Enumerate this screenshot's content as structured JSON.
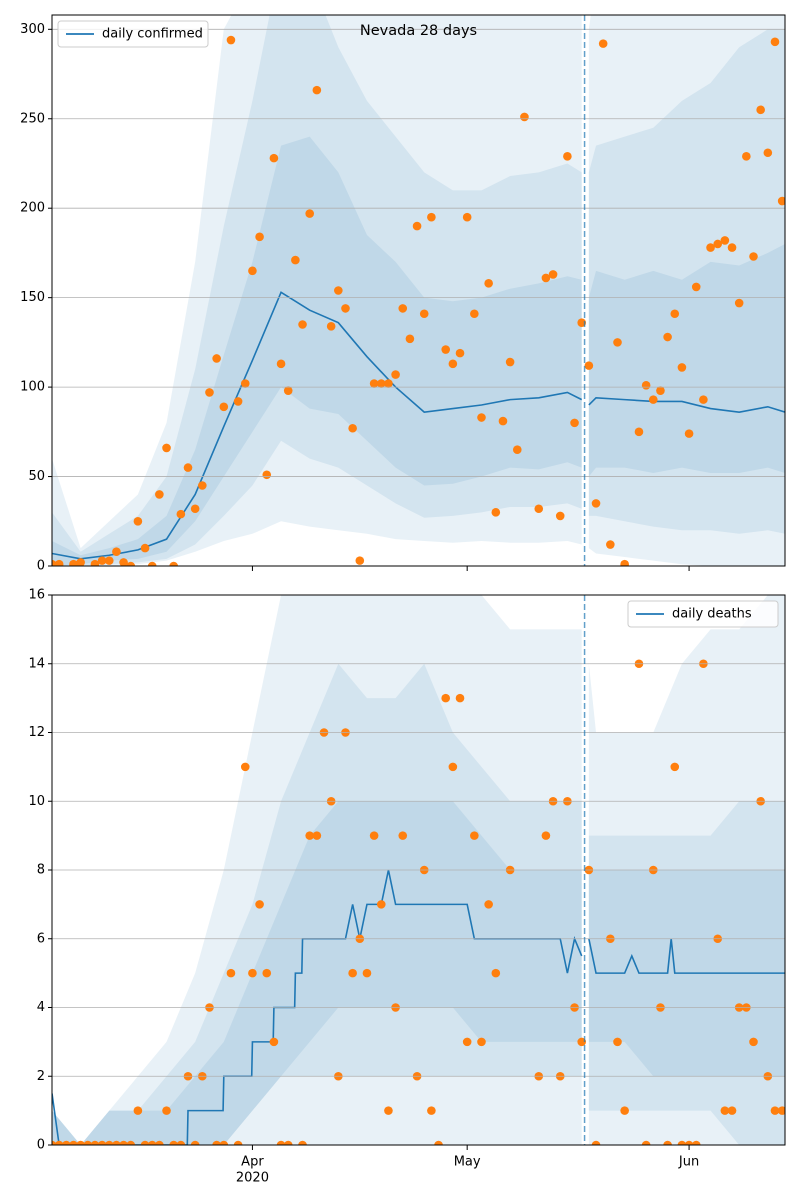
{
  "chart_data": [
    {
      "type": "line",
      "title": "Nevada 28 days",
      "xlim": [
        0,
        102.4
      ],
      "xticks": [
        28,
        58,
        89
      ],
      "ylim": [
        0,
        308
      ],
      "yticks": [
        0,
        50,
        100,
        150,
        200,
        250,
        300
      ],
      "grid": true,
      "legend": "upper left",
      "vline": 74.4,
      "x": [
        0,
        4,
        8,
        12,
        16,
        20,
        24,
        28,
        32,
        36,
        40,
        44,
        48,
        52,
        56,
        60,
        64,
        68,
        72,
        74,
        74.5,
        75,
        76,
        80,
        84,
        88,
        92,
        96,
        100,
        102.4
      ],
      "bands": [
        {
          "color": "#1f77b4",
          "lower": [
            0,
            0,
            0,
            1,
            3,
            8,
            14,
            18,
            25,
            22,
            20,
            18,
            15,
            14,
            13,
            14,
            13,
            13,
            14,
            12,
            null,
            10,
            7,
            5,
            3,
            1,
            0,
            0,
            0,
            0
          ],
          "upper": [
            60,
            10,
            25,
            40,
            80,
            170,
            300,
            330,
            330,
            330,
            330,
            330,
            330,
            330,
            320,
            320,
            310,
            330,
            330,
            330,
            null,
            300,
            330,
            330,
            330,
            330,
            330,
            330,
            330,
            330
          ]
        },
        {
          "color": "#1f77b4",
          "lower": [
            0,
            0,
            1,
            2,
            4,
            12,
            28,
            45,
            70,
            60,
            55,
            45,
            35,
            27,
            28,
            30,
            33,
            33,
            35,
            32,
            null,
            28,
            28,
            25,
            22,
            20,
            20,
            18,
            20,
            18
          ],
          "upper": [
            30,
            8,
            18,
            28,
            50,
            110,
            190,
            260,
            340,
            330,
            290,
            260,
            240,
            220,
            210,
            210,
            218,
            220,
            225,
            220,
            null,
            220,
            235,
            240,
            245,
            260,
            270,
            290,
            300,
            300
          ]
        },
        {
          "color": "#1f77b4",
          "lower": [
            0,
            1,
            3,
            4,
            8,
            25,
            50,
            75,
            100,
            88,
            85,
            70,
            55,
            45,
            46,
            50,
            55,
            54,
            58,
            55,
            null,
            50,
            55,
            55,
            52,
            55,
            52,
            52,
            55,
            52
          ],
          "upper": [
            14,
            6,
            10,
            15,
            28,
            65,
            118,
            170,
            235,
            240,
            220,
            185,
            170,
            150,
            148,
            150,
            155,
            158,
            162,
            160,
            null,
            150,
            165,
            160,
            165,
            160,
            170,
            168,
            175,
            180
          ]
        }
      ],
      "series": [
        {
          "name": "daily confirmed",
          "color": "#1f77b4",
          "values": [
            7,
            4,
            6,
            9,
            15,
            40,
            78,
            115,
            153,
            143,
            136,
            117,
            100,
            86,
            88,
            90,
            93,
            94,
            97,
            93,
            null,
            90,
            94,
            93,
            92,
            92,
            88,
            86,
            89,
            86
          ]
        }
      ],
      "observed": {
        "color": "#ff7f0e",
        "x": [
          0,
          1,
          3,
          4,
          6,
          7,
          8,
          9,
          10,
          11,
          12,
          13,
          14,
          15,
          16,
          17,
          18,
          19,
          20,
          21,
          22,
          23,
          24,
          25,
          26,
          27,
          28,
          29,
          30,
          31,
          32,
          33,
          34,
          35,
          36,
          37,
          39,
          40,
          41,
          42,
          43,
          45,
          46,
          47,
          48,
          49,
          50,
          51,
          52,
          53,
          55,
          56,
          57,
          58,
          59,
          60,
          61,
          62,
          63,
          64,
          65,
          66,
          68,
          69,
          70,
          71,
          72,
          73,
          74,
          75,
          76,
          77,
          78,
          79,
          80,
          82,
          83,
          84,
          85,
          86,
          87,
          88,
          89,
          90,
          91,
          92,
          93,
          94,
          95,
          96,
          97,
          98,
          99,
          100,
          101,
          102
        ],
        "values": [
          1,
          1,
          1,
          2,
          1,
          3,
          3,
          8,
          2,
          0,
          25,
          10,
          0,
          40,
          66,
          0,
          29,
          55,
          32,
          45,
          97,
          116,
          89,
          294,
          92,
          102,
          165,
          184,
          51,
          228,
          113,
          98,
          171,
          135,
          197,
          266,
          134,
          154,
          144,
          77,
          3,
          102,
          102,
          102,
          107,
          144,
          127,
          190,
          141,
          195,
          121,
          113,
          119,
          195,
          141,
          83,
          158,
          30,
          81,
          114,
          65,
          251,
          32,
          161,
          163,
          28,
          229,
          80,
          136,
          112,
          35,
          292,
          12,
          125,
          1,
          75,
          101,
          93,
          98,
          128,
          141,
          111,
          74,
          156,
          93,
          178,
          180,
          182,
          178,
          147,
          229,
          173,
          255,
          231,
          293,
          204
        ]
      }
    },
    {
      "type": "line",
      "xlim": [
        0,
        102.4
      ],
      "xticks": [
        {
          "value": 28,
          "label": "Apr",
          "sublabel": "2020"
        },
        {
          "value": 58,
          "label": "May"
        },
        {
          "value": 89,
          "label": "Jun"
        }
      ],
      "ylim": [
        0,
        16
      ],
      "yticks": [
        0,
        2,
        4,
        6,
        8,
        10,
        12,
        14,
        16
      ],
      "grid": true,
      "legend": "upper right",
      "vline": 74.4,
      "x": [
        0,
        4,
        8,
        12,
        16,
        20,
        24,
        28,
        32,
        36,
        40,
        44,
        48,
        52,
        56,
        60,
        64,
        68,
        72,
        74,
        74.5,
        75,
        76,
        80,
        84,
        88,
        92,
        96,
        100,
        102.4
      ],
      "bands": [
        {
          "color": "#1f77b4",
          "lower": [
            0,
            0,
            0,
            0,
            0,
            0,
            0,
            0,
            0,
            0,
            0,
            0,
            0,
            0,
            0,
            0,
            0,
            0,
            0,
            0,
            null,
            0,
            0,
            0,
            0,
            0,
            0,
            0,
            0,
            0
          ],
          "upper": [
            1,
            0,
            1,
            2,
            3,
            5,
            8,
            12,
            16,
            16,
            16,
            16,
            16,
            16,
            16,
            16,
            15,
            15,
            15,
            15,
            null,
            14,
            12,
            12,
            12,
            14,
            15,
            15,
            16,
            16
          ]
        },
        {
          "color": "#1f77b4",
          "lower": [
            0,
            0,
            0,
            0,
            0,
            0,
            0,
            1,
            2,
            2,
            2,
            2,
            2,
            2,
            2,
            2,
            2,
            2,
            2,
            2,
            null,
            1,
            1,
            1,
            1,
            1,
            1,
            0,
            0,
            0
          ],
          "upper": [
            1,
            0,
            1,
            1,
            2,
            3,
            5,
            7,
            10,
            12,
            14,
            13,
            13,
            14,
            12,
            11,
            10,
            10,
            10,
            10,
            null,
            9,
            9,
            9,
            9,
            9,
            9,
            10,
            10,
            10
          ]
        },
        {
          "color": "#1f77b4",
          "lower": [
            0,
            0,
            0,
            0,
            0,
            0,
            0,
            1,
            2,
            3,
            4,
            4,
            4,
            4,
            4,
            3,
            3,
            3,
            3,
            3,
            null,
            3,
            3,
            3,
            2,
            2,
            2,
            2,
            2,
            2
          ],
          "upper": [
            1,
            0,
            1,
            1,
            1,
            2,
            3,
            5,
            7,
            9,
            10,
            10,
            10,
            10,
            10,
            9,
            8,
            8,
            8,
            8,
            null,
            8,
            8,
            8,
            8,
            8,
            8,
            8,
            8,
            8
          ]
        }
      ],
      "series": [
        {
          "name": "daily deaths",
          "color": "#1f77b4",
          "x": [
            0,
            1,
            18.9,
            19,
            23.9,
            24,
            27.9,
            28,
            30.9,
            31,
            33.9,
            34,
            34.9,
            35,
            41,
            42,
            43,
            44,
            46,
            47,
            48,
            58,
            59,
            71,
            72,
            73,
            74,
            74.5,
            75,
            76,
            80,
            81,
            82,
            86,
            86.5,
            87,
            102.4
          ],
          "values": [
            1.5,
            0,
            0,
            1,
            1,
            2,
            2,
            3,
            3,
            4,
            4,
            5,
            5,
            6,
            6,
            7,
            6,
            7,
            7,
            8,
            7,
            7,
            6,
            6,
            5,
            6,
            5.5,
            null,
            6,
            5,
            5,
            5.5,
            5,
            5,
            6,
            5,
            5
          ]
        }
      ],
      "observed": {
        "color": "#ff7f0e",
        "x": [
          0,
          1,
          2,
          3,
          4,
          5,
          6,
          7,
          8,
          9,
          10,
          11,
          12,
          13,
          14,
          15,
          16,
          17,
          18,
          19,
          20,
          21,
          22,
          23,
          24,
          25,
          26,
          27,
          28,
          29,
          30,
          31,
          32,
          33,
          35,
          36,
          37,
          38,
          39,
          40,
          41,
          42,
          43,
          44,
          45,
          46,
          47,
          48,
          49,
          51,
          52,
          53,
          54,
          55,
          56,
          57,
          58,
          59,
          60,
          61,
          62,
          64,
          68,
          69,
          70,
          71,
          72,
          73,
          74,
          75,
          76,
          78,
          79,
          80,
          82,
          83,
          84,
          85,
          86,
          87,
          88,
          89,
          90,
          91,
          93,
          94,
          95,
          96,
          97,
          98,
          99,
          100,
          101,
          102
        ],
        "values": [
          0,
          0,
          0,
          0,
          0,
          0,
          0,
          0,
          0,
          0,
          0,
          0,
          1,
          0,
          0,
          0,
          1,
          0,
          0,
          2,
          0,
          2,
          4,
          0,
          0,
          5,
          0,
          11,
          5,
          7,
          5,
          3,
          0,
          0,
          0,
          9,
          9,
          12,
          10,
          2,
          12,
          5,
          6,
          5,
          9,
          7,
          1,
          4,
          9,
          2,
          8,
          1,
          0,
          13,
          11,
          13,
          3,
          9,
          3,
          7,
          5,
          8,
          2,
          9,
          10,
          2,
          10,
          4,
          3,
          8,
          0,
          6,
          3,
          1,
          14,
          0,
          8,
          4,
          0,
          11,
          0,
          0,
          0,
          14,
          6,
          1,
          1,
          4,
          4,
          3,
          10,
          2,
          1,
          1
        ]
      }
    }
  ]
}
